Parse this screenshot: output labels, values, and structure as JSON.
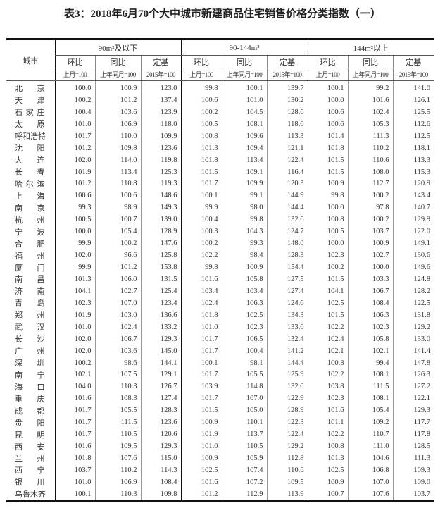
{
  "title": "表3：2018年6月70个大中城市新建商品住宅销售价格分类指数（一）",
  "header": {
    "city_label": "城市",
    "groups": [
      "90m²及以下",
      "90-144m²",
      "144m²以上"
    ],
    "subcols": [
      "环比",
      "同比",
      "定基"
    ],
    "bases": [
      "上月=100",
      "上年同月=100",
      "2015年=100"
    ]
  },
  "rows": [
    {
      "city": "北京",
      "v": [
        "100.0",
        "100.9",
        "123.0",
        "99.8",
        "100.1",
        "139.7",
        "100.1",
        "99.2",
        "141.0"
      ]
    },
    {
      "city": "天津",
      "v": [
        "100.2",
        "101.2",
        "137.4",
        "100.6",
        "101.0",
        "130.2",
        "100.0",
        "101.6",
        "126.1"
      ]
    },
    {
      "city": "石家庄",
      "v": [
        "100.4",
        "103.6",
        "123.9",
        "100.2",
        "104.5",
        "128.6",
        "100.6",
        "102.4",
        "125.5"
      ]
    },
    {
      "city": "太原",
      "v": [
        "101.0",
        "106.9",
        "118.0",
        "100.5",
        "108.1",
        "118.6",
        "100.6",
        "105.3",
        "112.6"
      ]
    },
    {
      "city": "呼和浩特",
      "v": [
        "101.7",
        "110.0",
        "109.9",
        "100.8",
        "109.6",
        "113.3",
        "101.4",
        "111.3",
        "112.5"
      ]
    },
    {
      "city": "沈阳",
      "v": [
        "101.2",
        "109.8",
        "123.6",
        "101.3",
        "109.4",
        "121.1",
        "101.8",
        "110.2",
        "118.1"
      ]
    },
    {
      "city": "大连",
      "v": [
        "102.0",
        "114.0",
        "119.8",
        "101.8",
        "113.4",
        "122.4",
        "101.5",
        "110.6",
        "113.3"
      ]
    },
    {
      "city": "长春",
      "v": [
        "101.9",
        "113.4",
        "125.3",
        "101.5",
        "109.1",
        "116.4",
        "101.5",
        "108.0",
        "115.3"
      ]
    },
    {
      "city": "哈尔滨",
      "v": [
        "101.2",
        "110.8",
        "119.3",
        "101.7",
        "109.9",
        "120.3",
        "100.9",
        "112.7",
        "120.9"
      ]
    },
    {
      "city": "上海",
      "v": [
        "100.6",
        "100.6",
        "148.6",
        "100.1",
        "99.1",
        "144.9",
        "99.8",
        "100.2",
        "143.4"
      ]
    },
    {
      "city": "南京",
      "v": [
        "99.3",
        "98.9",
        "149.3",
        "99.9",
        "98.0",
        "144.4",
        "100.0",
        "97.8",
        "140.7"
      ]
    },
    {
      "city": "杭州",
      "v": [
        "100.5",
        "100.7",
        "139.0",
        "100.4",
        "99.8",
        "132.6",
        "100.8",
        "100.2",
        "129.9"
      ]
    },
    {
      "city": "宁波",
      "v": [
        "100.0",
        "105.4",
        "128.9",
        "100.3",
        "104.3",
        "124.7",
        "100.5",
        "103.7",
        "122.0"
      ]
    },
    {
      "city": "合肥",
      "v": [
        "99.9",
        "100.2",
        "147.6",
        "100.2",
        "99.3",
        "148.0",
        "100.0",
        "100.9",
        "149.1"
      ]
    },
    {
      "city": "福州",
      "v": [
        "102.0",
        "96.6",
        "125.8",
        "102.2",
        "98.4",
        "128.3",
        "102.3",
        "102.7",
        "130.6"
      ]
    },
    {
      "city": "厦门",
      "v": [
        "99.9",
        "101.2",
        "153.8",
        "99.8",
        "100.9",
        "154.4",
        "100.2",
        "100.0",
        "149.6"
      ]
    },
    {
      "city": "南昌",
      "v": [
        "101.3",
        "106.0",
        "131.5",
        "101.6",
        "105.8",
        "127.5",
        "101.5",
        "103.3",
        "124.8"
      ]
    },
    {
      "city": "济南",
      "v": [
        "104.1",
        "102.7",
        "125.4",
        "103.4",
        "103.4",
        "127.4",
        "104.1",
        "106.7",
        "128.2"
      ]
    },
    {
      "city": "青岛",
      "v": [
        "102.3",
        "107.0",
        "123.4",
        "102.4",
        "106.3",
        "124.6",
        "102.5",
        "108.4",
        "122.5"
      ]
    },
    {
      "city": "郑州",
      "v": [
        "101.9",
        "103.0",
        "136.6",
        "101.8",
        "102.5",
        "134.3",
        "101.5",
        "106.3",
        "131.8"
      ]
    },
    {
      "city": "武汉",
      "v": [
        "101.0",
        "102.4",
        "133.2",
        "101.0",
        "102.3",
        "133.6",
        "102.2",
        "102.3",
        "129.2"
      ]
    },
    {
      "city": "长沙",
      "v": [
        "102.0",
        "106.7",
        "129.3",
        "101.7",
        "106.5",
        "132.4",
        "102.4",
        "105.8",
        "133.0"
      ]
    },
    {
      "city": "广州",
      "v": [
        "102.0",
        "103.6",
        "145.0",
        "101.7",
        "100.4",
        "141.2",
        "102.1",
        "102.1",
        "141.4"
      ]
    },
    {
      "city": "深圳",
      "v": [
        "100.2",
        "98.6",
        "144.1",
        "100.1",
        "98.1",
        "144.4",
        "100.8",
        "99.4",
        "147.8"
      ]
    },
    {
      "city": "南宁",
      "v": [
        "102.1",
        "107.5",
        "129.1",
        "101.7",
        "105.5",
        "125.9",
        "102.2",
        "108.1",
        "126.3"
      ]
    },
    {
      "city": "海口",
      "v": [
        "104.0",
        "110.3",
        "126.7",
        "103.9",
        "114.8",
        "132.0",
        "103.8",
        "111.5",
        "127.2"
      ]
    },
    {
      "city": "重庆",
      "v": [
        "101.6",
        "108.3",
        "127.4",
        "101.7",
        "107.0",
        "122.9",
        "102.3",
        "108.1",
        "122.1"
      ]
    },
    {
      "city": "成都",
      "v": [
        "101.7",
        "105.5",
        "128.3",
        "101.5",
        "105.0",
        "128.9",
        "101.6",
        "105.4",
        "129.3"
      ]
    },
    {
      "city": "贵阳",
      "v": [
        "101.7",
        "111.5",
        "123.6",
        "100.9",
        "110.1",
        "122.3",
        "101.1",
        "109.2",
        "117.7"
      ]
    },
    {
      "city": "昆明",
      "v": [
        "101.7",
        "110.5",
        "120.6",
        "101.9",
        "113.7",
        "122.4",
        "102.2",
        "110.7",
        "117.8"
      ]
    },
    {
      "city": "西安",
      "v": [
        "101.6",
        "109.5",
        "129.3",
        "101.0",
        "110.5",
        "129.2",
        "100.8",
        "111.0",
        "128.5"
      ]
    },
    {
      "city": "兰州",
      "v": [
        "101.8",
        "107.6",
        "115.0",
        "100.9",
        "105.9",
        "112.8",
        "101.3",
        "104.6",
        "111.3"
      ]
    },
    {
      "city": "西宁",
      "v": [
        "103.7",
        "110.2",
        "114.3",
        "102.5",
        "107.4",
        "110.6",
        "102.5",
        "106.8",
        "109.3"
      ]
    },
    {
      "city": "银川",
      "v": [
        "101.0",
        "106.9",
        "108.4",
        "101.6",
        "107.2",
        "109.5",
        "100.9",
        "107.0",
        "109.0"
      ]
    },
    {
      "city": "乌鲁木齐",
      "v": [
        "100.1",
        "110.3",
        "109.8",
        "101.2",
        "112.9",
        "113.9",
        "100.7",
        "107.6",
        "103.7"
      ]
    }
  ]
}
